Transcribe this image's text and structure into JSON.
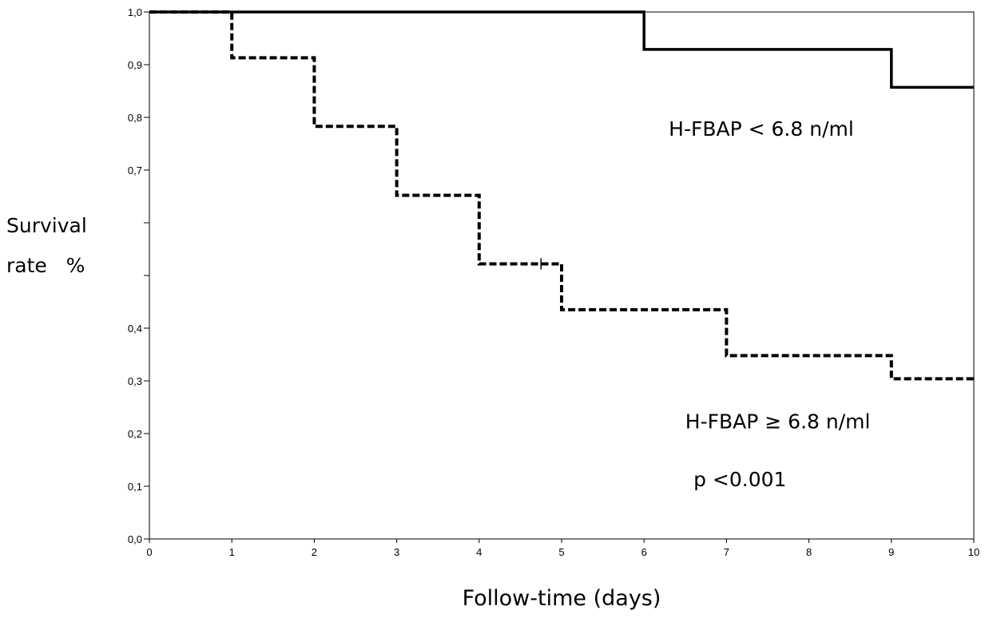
{
  "chart_data": {
    "type": "line",
    "style": "step",
    "xlabel": "Follow-time (days)",
    "ylabel_lines": [
      "Survival",
      "rate   %"
    ],
    "xlim": [
      0,
      10
    ],
    "ylim": [
      0,
      1
    ],
    "x_ticks": [
      "0",
      "1",
      "2",
      "3",
      "4",
      "5",
      "6",
      "7",
      "8",
      "9",
      "10"
    ],
    "y_ticks": [
      {
        "value": 0.0,
        "label": "0,0"
      },
      {
        "value": 0.1,
        "label": "0,1"
      },
      {
        "value": 0.2,
        "label": "0,2"
      },
      {
        "value": 0.3,
        "label": "0,3"
      },
      {
        "value": 0.4,
        "label": "0,4"
      },
      {
        "value": 0.5,
        "label": ""
      },
      {
        "value": 0.6,
        "label": ""
      },
      {
        "value": 0.7,
        "label": "0,7"
      },
      {
        "value": 0.8,
        "label": "0,8"
      },
      {
        "value": 0.9,
        "label": "0,9"
      },
      {
        "value": 1.0,
        "label": "1,0"
      }
    ],
    "grid": false,
    "series": [
      {
        "name": "H-FBAP < 6.8 n/ml",
        "line_style": "solid",
        "color": "#000000",
        "x": [
          0,
          6,
          9,
          10
        ],
        "y": [
          1.0,
          0.929,
          0.857,
          0.857
        ]
      },
      {
        "name": "H-FBAP ≥ 6.8 n/ml",
        "line_style": "dashed",
        "color": "#000000",
        "x": [
          0,
          1,
          2,
          3,
          4,
          5,
          7,
          9,
          10
        ],
        "y": [
          1.0,
          0.913,
          0.783,
          0.652,
          0.522,
          0.435,
          0.348,
          0.304,
          0.304
        ],
        "censored": [
          {
            "x": 4.75,
            "y": 0.522
          }
        ]
      }
    ],
    "annotations": [
      {
        "text": "H-FBAP < 6.8 n/ml",
        "x": 6.3,
        "y": 0.765
      },
      {
        "text": "H-FBAP ≥ 6.8 n/ml",
        "x": 6.5,
        "y": 0.21
      },
      {
        "text": "p <0.001",
        "x": 6.6,
        "y": 0.1
      }
    ]
  }
}
